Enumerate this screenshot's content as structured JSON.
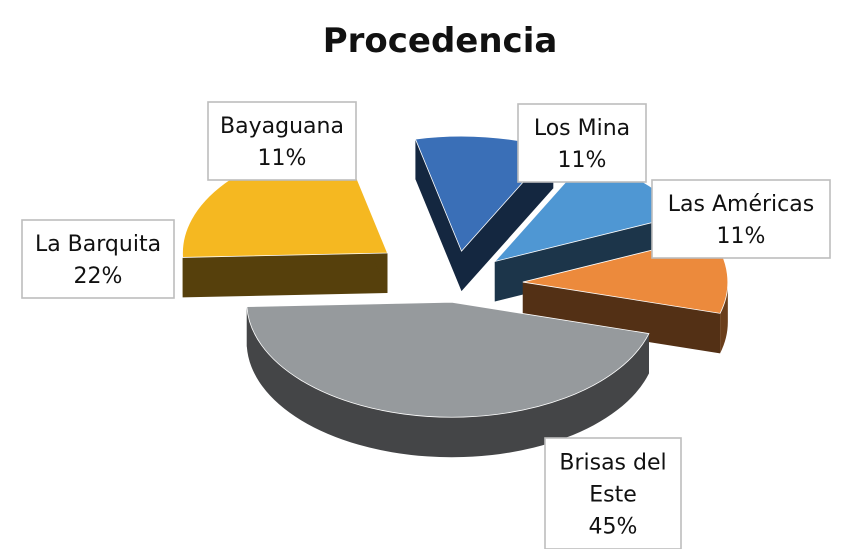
{
  "chart_data": {
    "type": "pie",
    "title": "Procedencia",
    "slices": [
      {
        "name": "Bayaguana",
        "value": 11,
        "percent_label": "11%",
        "color": "#3a6fb7"
      },
      {
        "name": "Los Mina",
        "value": 11,
        "percent_label": "11%",
        "color": "#4f97d3"
      },
      {
        "name": "Las Américas",
        "value": 11,
        "percent_label": "11%",
        "color": "#ec8a3c"
      },
      {
        "name": "Brisas del Este",
        "value": 45,
        "percent_label": "45%",
        "color": "#969a9d"
      },
      {
        "name": "La Barquita",
        "value": 22,
        "percent_label": "22%",
        "color": "#f5b821"
      }
    ],
    "style": "3d-exploded",
    "legend": "none",
    "data_labels": "callouts"
  }
}
